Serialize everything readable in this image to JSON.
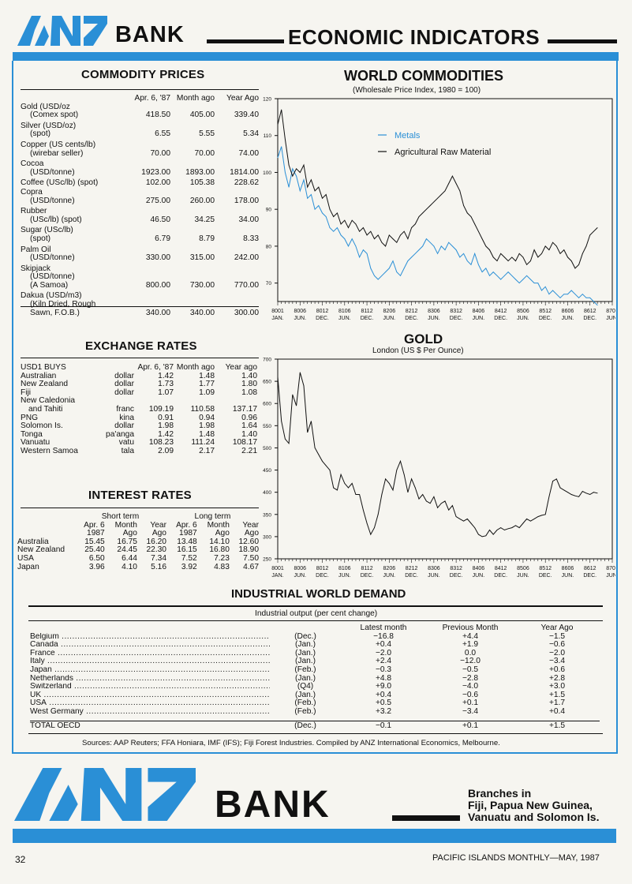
{
  "header": {
    "logo": "ANZ",
    "bank": "BANK",
    "title": "ECONOMIC INDICATORS",
    "accent_color": "#2a8fd6"
  },
  "commodity": {
    "title": "COMMODITY PRICES",
    "columns": [
      "Apr. 6, '87",
      "Month ago",
      "Year Ago"
    ],
    "rows": [
      {
        "label": [
          "Gold (USD/oz",
          "(Comex spot)"
        ],
        "values": [
          "418.50",
          "405.00",
          "339.40"
        ]
      },
      {
        "label": [
          "Silver (USD/oz)",
          "(spot)"
        ],
        "values": [
          "6.55",
          "5.55",
          "5.34"
        ]
      },
      {
        "label": [
          "Copper (US cents/lb)",
          "(wirebar seller)"
        ],
        "values": [
          "70.00",
          "70.00",
          "74.00"
        ]
      },
      {
        "label": [
          "Cocoa",
          "(USD/tonne)"
        ],
        "values": [
          "1923.00",
          "1893.00",
          "1814.00"
        ]
      },
      {
        "label": [
          "Coffee (USc/lb) (spot)"
        ],
        "values": [
          "102.00",
          "105.38",
          "228.62"
        ]
      },
      {
        "label": [
          "Copra",
          "(USD/tonne)"
        ],
        "values": [
          "275.00",
          "260.00",
          "178.00"
        ]
      },
      {
        "label": [
          "Rubber",
          "(USc/lb) (spot)"
        ],
        "values": [
          "46.50",
          "34.25",
          "34.00"
        ]
      },
      {
        "label": [
          "Sugar (USc/lb)",
          "(spot)"
        ],
        "values": [
          "6.79",
          "8.79",
          "8.33"
        ]
      },
      {
        "label": [
          "Palm Oil",
          "(USD/tonne)"
        ],
        "values": [
          "330.00",
          "315.00",
          "242.00"
        ]
      },
      {
        "label": [
          "Skipjack",
          "(USD/tonne)",
          "(A Samoa)"
        ],
        "values": [
          "800.00",
          "730.00",
          "770.00"
        ]
      },
      {
        "label": [
          "Dakua (USD/m3)",
          "(Kiln Dried, Rough",
          "Sawn, F.O.B.)"
        ],
        "values": [
          "340.00",
          "340.00",
          "300.00"
        ]
      }
    ]
  },
  "exchange": {
    "title": "EXCHANGE RATES",
    "head": [
      "USD1 BUYS",
      "Apr. 6, '87",
      "Month ago",
      "Year ago"
    ],
    "rows": [
      [
        "Australian",
        "dollar",
        "1.42",
        "1.48",
        "1.40"
      ],
      [
        "New Zealand",
        "dollar",
        "1.73",
        "1.77",
        "1.80"
      ],
      [
        "Fiji",
        "dollar",
        "1.07",
        "1.09",
        "1.08"
      ],
      [
        "New Caledonia",
        "",
        "",
        "",
        ""
      ],
      [
        "and Tahiti",
        "franc",
        "109.19",
        "110.58",
        "137.17"
      ],
      [
        "PNG",
        "kina",
        "0.91",
        "0.94",
        "0.96"
      ],
      [
        "Solomon Is.",
        "dollar",
        "1.98",
        "1.98",
        "1.64"
      ],
      [
        "Tonga",
        "pa'anga",
        "1.42",
        "1.48",
        "1.40"
      ],
      [
        "Vanuatu",
        "vatu",
        "108.23",
        "111.24",
        "108.17"
      ],
      [
        "Western Samoa",
        "tala",
        "2.09",
        "2.17",
        "2.21"
      ]
    ]
  },
  "interest": {
    "title": "INTEREST RATES",
    "groups": [
      "Short term",
      "Long term"
    ],
    "head1": [
      "Apr. 6",
      "Month",
      "Year",
      "Apr. 6",
      "Month",
      "Year"
    ],
    "head2": [
      "1987",
      "Ago",
      "Ago",
      "1987",
      "Ago",
      "Ago"
    ],
    "rows": [
      [
        "Australia",
        "15.45",
        "16.75",
        "16.20",
        "13.48",
        "14.10",
        "12.60"
      ],
      [
        "New Zealand",
        "25.40",
        "24.45",
        "22.30",
        "16.15",
        "16.80",
        "18.90"
      ],
      [
        "USA",
        "6.50",
        "6.44",
        "7.34",
        "7.52",
        "7.23",
        "7.50"
      ],
      [
        "Japan",
        "3.96",
        "4.10",
        "5.16",
        "3.92",
        "4.83",
        "4.67"
      ]
    ]
  },
  "world_commodities": {
    "title": "WORLD COMMODITIES",
    "subtitle": "(Wholesale Price Index, 1980 = 100)"
  },
  "gold": {
    "title": "GOLD",
    "subtitle": "London (US $ Per Ounce)"
  },
  "axis_labels": {
    "codes": [
      "8001",
      "8006",
      "8012",
      "8106",
      "8112",
      "8206",
      "8212",
      "8306",
      "8312",
      "8406",
      "8412",
      "8506",
      "8512",
      "8606",
      "8612",
      "8706"
    ],
    "months": [
      "JAN.",
      "JUN.",
      "DEC.",
      "JUN.",
      "DEC.",
      "JUN.",
      "DEC.",
      "JUN.",
      "DEC.",
      "JUN.",
      "DEC.",
      "JUN.",
      "DEC.",
      "JUN.",
      "DEC.",
      "JUN."
    ]
  },
  "chart_data": [
    {
      "type": "line",
      "title": "WORLD COMMODITIES",
      "subtitle": "(Wholesale Price Index, 1980 = 100)",
      "xlabel": "",
      "ylabel": "",
      "ylim": [
        65,
        120
      ],
      "yticks": [
        70,
        80,
        90,
        100,
        110,
        120
      ],
      "xlim": [
        0,
        90
      ],
      "xtick_labels": [
        "8001 JAN.",
        "8006 JUN.",
        "8012 DEC.",
        "8106 JUN.",
        "8112 DEC.",
        "8206 JUN.",
        "8212 DEC.",
        "8306 JUN.",
        "8312 DEC.",
        "8406 JUN.",
        "8412 DEC.",
        "8506 JUN.",
        "8512 DEC.",
        "8606 JUN.",
        "8612 DEC.",
        "8706 JUN."
      ],
      "legend": "top-left",
      "series": [
        {
          "name": "Metals",
          "color": "#2a8fd6",
          "x": [
            0,
            1,
            2,
            3,
            4,
            5,
            6,
            7,
            8,
            9,
            10,
            11,
            12,
            13,
            14,
            15,
            16,
            17,
            18,
            19,
            20,
            21,
            22,
            23,
            24,
            25,
            26,
            27,
            28,
            29,
            30,
            31,
            32,
            33,
            34,
            35,
            36,
            37,
            38,
            39,
            40,
            41,
            42,
            43,
            44,
            45,
            46,
            47,
            48,
            49,
            50,
            51,
            52,
            53,
            54,
            55,
            56,
            57,
            58,
            59,
            60,
            61,
            62,
            63,
            64,
            65,
            66,
            67,
            68,
            69,
            70,
            71,
            72,
            73,
            74,
            75,
            76,
            77,
            78,
            79,
            80,
            81,
            82,
            83,
            84,
            85,
            86
          ],
          "values": [
            104,
            107,
            100,
            96,
            101,
            99,
            95,
            98,
            93,
            94,
            90,
            91,
            89,
            88,
            85,
            84,
            85,
            83,
            82,
            80,
            82,
            80,
            77,
            79,
            78,
            74,
            72,
            71,
            72,
            73,
            74,
            76,
            73,
            72,
            74,
            76,
            77,
            78,
            79,
            80,
            82,
            81,
            80,
            78,
            80,
            79,
            81,
            80,
            79,
            77,
            78,
            76,
            75,
            78,
            75,
            73,
            74,
            72,
            73,
            72,
            71,
            72,
            73,
            72,
            71,
            70,
            71,
            72,
            71,
            70,
            70,
            68,
            69,
            67,
            68,
            67,
            66,
            67,
            67,
            68,
            67,
            66,
            67,
            66,
            66,
            65,
            64
          ]
        },
        {
          "name": "Agricultural Raw Material",
          "color": "#111111",
          "x": [
            0,
            1,
            2,
            3,
            4,
            5,
            6,
            7,
            8,
            9,
            10,
            11,
            12,
            13,
            14,
            15,
            16,
            17,
            18,
            19,
            20,
            21,
            22,
            23,
            24,
            25,
            26,
            27,
            28,
            29,
            30,
            31,
            32,
            33,
            34,
            35,
            36,
            37,
            38,
            39,
            40,
            41,
            42,
            43,
            44,
            45,
            46,
            47,
            48,
            49,
            50,
            51,
            52,
            53,
            54,
            55,
            56,
            57,
            58,
            59,
            60,
            61,
            62,
            63,
            64,
            65,
            66,
            67,
            68,
            69,
            70,
            71,
            72,
            73,
            74,
            75,
            76,
            77,
            78,
            79,
            80,
            81,
            82,
            83,
            84,
            85,
            86
          ],
          "values": [
            113,
            117,
            109,
            102,
            99,
            101,
            100,
            102,
            96,
            98,
            95,
            96,
            93,
            94,
            90,
            88,
            89,
            86,
            87,
            85,
            87,
            86,
            84,
            85,
            83,
            84,
            82,
            83,
            81,
            80,
            83,
            82,
            81,
            83,
            84,
            82,
            85,
            86,
            88,
            89,
            90,
            91,
            92,
            93,
            94,
            95,
            97,
            99,
            97,
            95,
            91,
            89,
            88,
            86,
            84,
            82,
            80,
            79,
            77,
            76,
            78,
            77,
            76,
            77,
            76,
            78,
            77,
            75,
            76,
            79,
            77,
            78,
            80,
            79,
            81,
            80,
            78,
            79,
            77,
            76,
            74,
            75,
            78,
            80,
            83,
            84,
            85
          ]
        }
      ]
    },
    {
      "type": "line",
      "title": "GOLD",
      "subtitle": "London (US $ Per Ounce)",
      "xlabel": "",
      "ylabel": "",
      "ylim": [
        250,
        700
      ],
      "yticks": [
        250,
        300,
        350,
        400,
        450,
        500,
        550,
        600,
        650,
        700
      ],
      "xlim": [
        0,
        90
      ],
      "xtick_labels": [
        "8001 JAN.",
        "8006 JUN.",
        "8012 DEC.",
        "8106 JUN.",
        "8112 DEC.",
        "8206 JUN.",
        "8212 DEC.",
        "8306 JUN.",
        "8312 DEC.",
        "8406 JUN.",
        "8412 DEC.",
        "8506 JUN.",
        "8512 DEC.",
        "8606 JUN.",
        "8612 DEC.",
        "8706 JUN."
      ],
      "series": [
        {
          "name": "",
          "color": "#111111",
          "x": [
            0,
            1,
            2,
            3,
            4,
            5,
            6,
            7,
            8,
            9,
            10,
            11,
            12,
            13,
            14,
            15,
            16,
            17,
            18,
            19,
            20,
            21,
            22,
            23,
            24,
            25,
            26,
            27,
            28,
            29,
            30,
            31,
            32,
            33,
            34,
            35,
            36,
            37,
            38,
            39,
            40,
            41,
            42,
            43,
            44,
            45,
            46,
            47,
            48,
            49,
            50,
            51,
            52,
            53,
            54,
            55,
            56,
            57,
            58,
            59,
            60,
            61,
            62,
            63,
            64,
            65,
            66,
            67,
            68,
            69,
            70,
            71,
            72,
            73,
            74,
            75,
            76,
            77,
            78,
            79,
            80,
            81,
            82,
            83,
            84,
            85,
            86
          ],
          "values": [
            660,
            560,
            520,
            510,
            620,
            595,
            670,
            640,
            535,
            560,
            500,
            485,
            470,
            460,
            450,
            410,
            405,
            440,
            420,
            410,
            420,
            395,
            395,
            360,
            330,
            305,
            320,
            350,
            395,
            430,
            420,
            405,
            450,
            470,
            440,
            400,
            430,
            410,
            385,
            395,
            380,
            375,
            390,
            365,
            375,
            380,
            360,
            370,
            345,
            340,
            335,
            340,
            330,
            320,
            305,
            300,
            302,
            315,
            305,
            315,
            320,
            315,
            318,
            320,
            325,
            320,
            330,
            340,
            335,
            340,
            345,
            348,
            350,
            390,
            425,
            430,
            410,
            405,
            400,
            395,
            392,
            390,
            402,
            398,
            395,
            400,
            398
          ]
        }
      ]
    }
  ],
  "industrial": {
    "title": "INDUSTRIAL WORLD DEMAND",
    "subtitle": "Industrial output (per cent change)",
    "columns": [
      "Latest month",
      "Previous Month",
      "Year Ago"
    ],
    "rows": [
      [
        "Belgium",
        "(Dec.)",
        "−16.8",
        "+4.4",
        "−1.5"
      ],
      [
        "Canada",
        "(Jan.)",
        "+0.4",
        "+1.9",
        "−0.6"
      ],
      [
        "France",
        "(Jan.)",
        "−2.0",
        "0.0",
        "−2.0"
      ],
      [
        "Italy",
        "(Jan.)",
        "+2.4",
        "−12.0",
        "−3.4"
      ],
      [
        "Japan",
        "(Feb.)",
        "−0.3",
        "−0.5",
        "+0.6"
      ],
      [
        "Netherlands",
        "(Jan.)",
        "+4.8",
        "−2.8",
        "+2.8"
      ],
      [
        "Switzerland",
        "(Q4)",
        "+9.0",
        "−4.0",
        "+3.0"
      ],
      [
        "UK",
        "(Jan.)",
        "+0.4",
        "−0.6",
        "+1.5"
      ],
      [
        "USA",
        "(Feb.)",
        "+0.5",
        "+0.1",
        "+1.7"
      ],
      [
        "West Germany",
        "(Feb.)",
        "+3.2",
        "−3.4",
        "+0.4"
      ]
    ],
    "total": [
      "TOTAL OECD",
      "(Dec.)",
      "−0.1",
      "+0.1",
      "+1.5"
    ]
  },
  "sources": "Sources: AAP Reuters; FFA Honiara, IMF (IFS); Fiji Forest Industries. Compiled by ANZ International Economics, Melbourne.",
  "ad": {
    "logo": "ANZ",
    "bank": "BANK",
    "lines": [
      "Branches in",
      "Fiji, Papua New Guinea,",
      "Vanuatu and Solomon Is."
    ]
  },
  "footer": {
    "page": "32",
    "magazine": "PACIFIC ISLANDS MONTHLY—MAY, 1987"
  }
}
